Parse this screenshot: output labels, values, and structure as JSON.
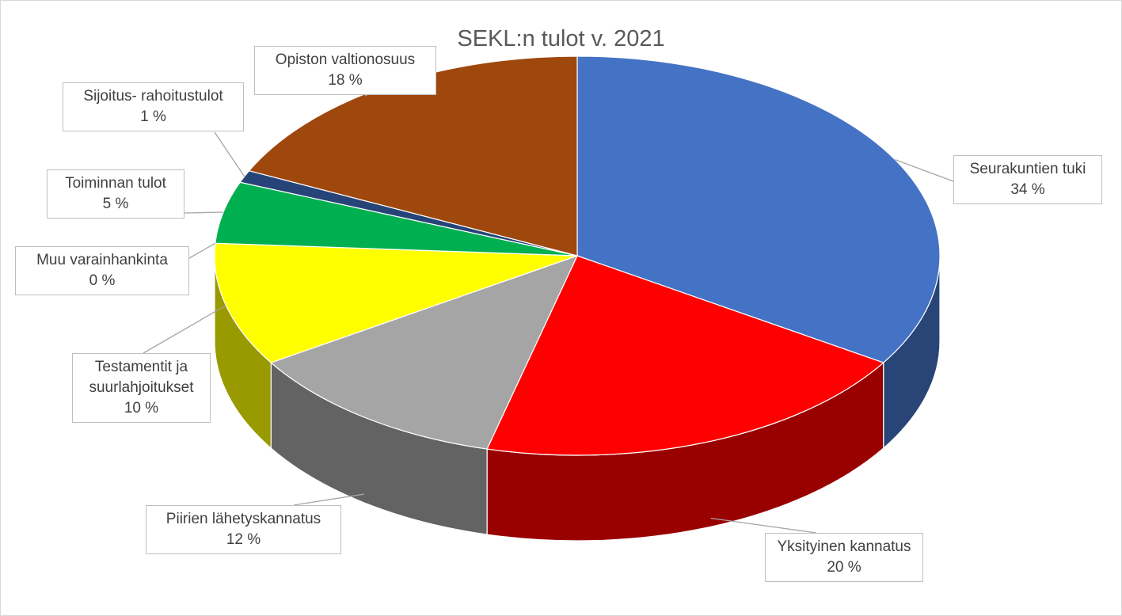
{
  "chart_data": {
    "type": "pie3d",
    "title": "SEKL:n tulot v. 2021",
    "categories": [
      "Seurakuntien tuki",
      "Yksityinen kannatus",
      "Piirien lähetyskannatus",
      "Testamentit ja suurlahjoitukset",
      "Muu varainhankinta",
      "Toiminnan tulot",
      "Sijoitus- rahoitustulot",
      "Opiston valtionosuus"
    ],
    "values": [
      34,
      20,
      12,
      10,
      0,
      5,
      1,
      18
    ],
    "value_labels": [
      "34 %",
      "20 %",
      "12 %",
      "10 %",
      "0 %",
      "5 %",
      "1 %",
      "18 %"
    ],
    "colors": [
      "#4472c4",
      "#ff0000",
      "#a5a5a5",
      "#ffff00",
      "#5b9bd5",
      "#00b050",
      "#264478",
      "#9e480e"
    ]
  }
}
